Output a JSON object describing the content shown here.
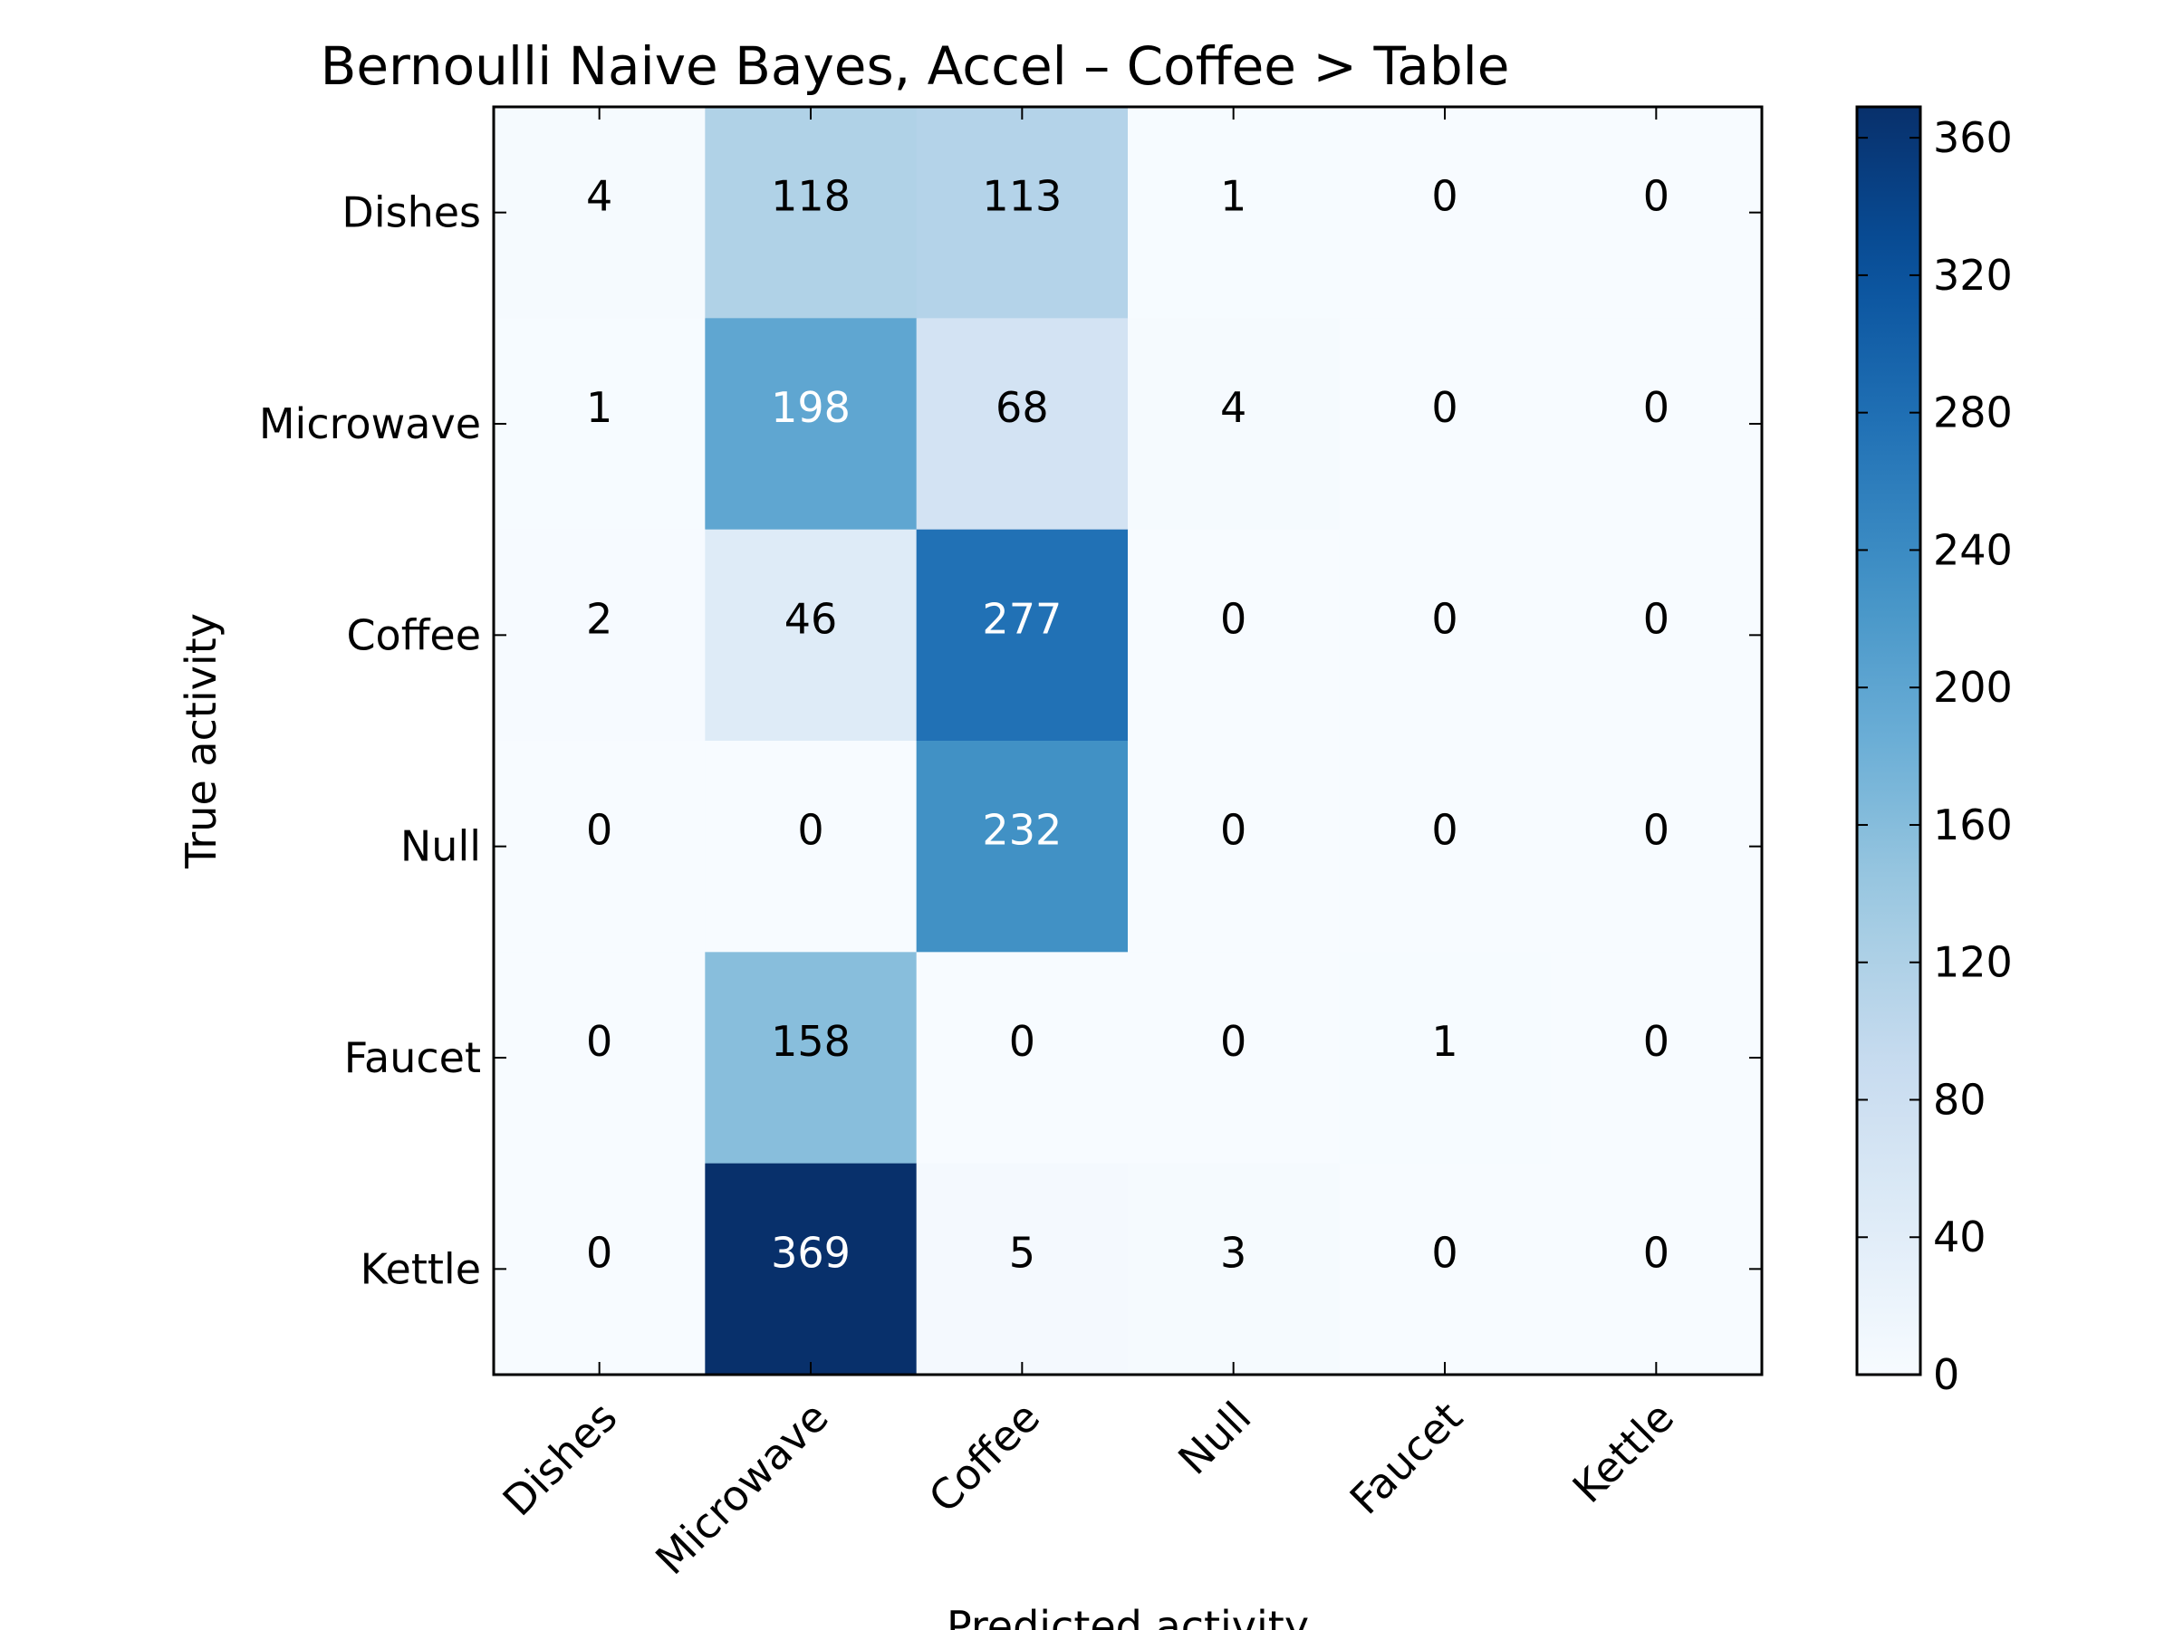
{
  "chart_data": {
    "type": "heatmap",
    "title": "Bernoulli Naive Bayes, Accel – Coffee > Table",
    "xlabel": "Predicted activity",
    "ylabel": "True activity",
    "row_labels": [
      "Dishes",
      "Microwave",
      "Coffee",
      "Null",
      "Faucet",
      "Kettle"
    ],
    "col_labels": [
      "Dishes",
      "Microwave",
      "Coffee",
      "Null",
      "Faucet",
      "Kettle"
    ],
    "values": [
      [
        4,
        118,
        113,
        1,
        0,
        0
      ],
      [
        1,
        198,
        68,
        4,
        0,
        0
      ],
      [
        2,
        46,
        277,
        0,
        0,
        0
      ],
      [
        0,
        0,
        232,
        0,
        0,
        0
      ],
      [
        0,
        158,
        0,
        0,
        1,
        0
      ],
      [
        0,
        369,
        5,
        3,
        0,
        0
      ]
    ],
    "colormap": "Blues",
    "colorbar": {
      "min": 0,
      "max": 369,
      "ticks": [
        0,
        40,
        80,
        120,
        160,
        200,
        240,
        280,
        320,
        360
      ]
    },
    "grid": false,
    "legend": "colorbar right"
  }
}
